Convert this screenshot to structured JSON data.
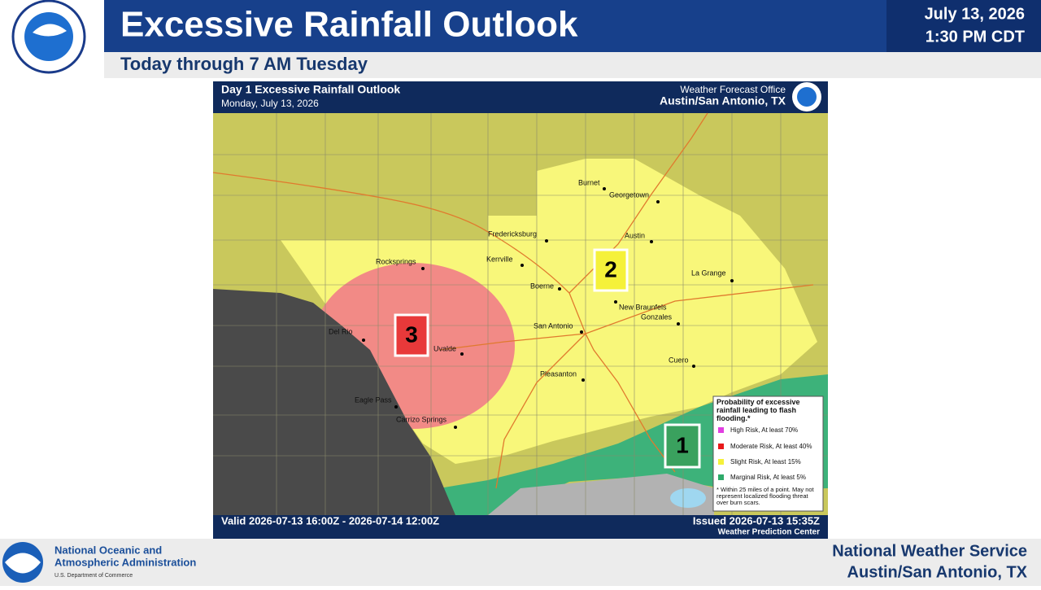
{
  "header": {
    "title": "Excessive Rainfall Outlook",
    "subtitle": "Today through 7 AM Tuesday",
    "date": "July 13, 2026",
    "time": "1:30 PM CDT"
  },
  "map": {
    "title": "Day 1 Excessive Rainfall Outlook",
    "date": "Monday, July 13, 2026",
    "office": "Weather Forecast Office",
    "office_location": "Austin/San Antonio, TX",
    "valid": "Valid 2026-07-13 16:00Z - 2026-07-14 12:00Z",
    "issued": "Issued 2026-07-13 15:35Z",
    "issuer": "Weather Prediction Center",
    "risk_labels": [
      "3",
      "2",
      "1"
    ],
    "cities": [
      "Burnet",
      "Georgetown",
      "Fredericksburg",
      "Austin",
      "Rocksprings",
      "Kerrville",
      "La Grange",
      "Boerne",
      "New Braunfels",
      "Gonzales",
      "San Antonio",
      "Del Rio",
      "Uvalde",
      "Cuero",
      "Pleasanton",
      "Eagle Pass",
      "Carrizo Springs"
    ]
  },
  "legend": {
    "title": "Probability of excessive rainfall leading to flash flooding.*",
    "items": [
      "High Risk, At least 70%",
      "Moderate Risk, At least 40%",
      "Slight Risk, At least 15%",
      "Marginal Risk, At least 5%"
    ],
    "note": "* Within 25 miles of a point. May not represent localized flooding threat over burn scars."
  },
  "footer": {
    "agency_line1": "National Oceanic and",
    "agency_line2": "Atmospheric Administration",
    "department": "U.S. Department of Commerce",
    "office": "National Weather Service",
    "office_location": "Austin/San Antonio, TX"
  }
}
